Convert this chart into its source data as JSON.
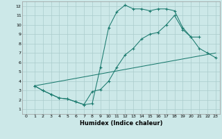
{
  "xlabel": "Humidex (Indice chaleur)",
  "bg_color": "#cce8e8",
  "grid_color": "#aacccc",
  "line_color": "#1a7a6e",
  "xlim": [
    -0.5,
    23.5
  ],
  "ylim": [
    0.5,
    12.5
  ],
  "xticks": [
    0,
    1,
    2,
    3,
    4,
    5,
    6,
    7,
    8,
    9,
    10,
    11,
    12,
    13,
    14,
    15,
    16,
    17,
    18,
    19,
    20,
    21,
    22,
    23
  ],
  "yticks": [
    1,
    2,
    3,
    4,
    5,
    6,
    7,
    8,
    9,
    10,
    11,
    12
  ],
  "xtick_labels": [
    "0",
    "1",
    "2",
    "3",
    "4",
    "5",
    "6",
    "7",
    "8",
    "9",
    "10",
    "11",
    "12",
    "13",
    "14",
    "15",
    "16",
    "17",
    "18",
    "19",
    "20",
    "21",
    "22",
    "23"
  ],
  "ytick_labels": [
    "1",
    "2",
    "3",
    "4",
    "5",
    "6",
    "7",
    "8",
    "9",
    "10",
    "11",
    "12"
  ],
  "line1_x": [
    1,
    2,
    3,
    4,
    5,
    6,
    7,
    8,
    9,
    10,
    11,
    12,
    13,
    14,
    15,
    16,
    17,
    18,
    19,
    20,
    21
  ],
  "line1_y": [
    3.5,
    3.0,
    2.6,
    2.2,
    2.1,
    1.8,
    1.5,
    1.6,
    5.5,
    9.7,
    11.4,
    12.1,
    11.7,
    11.7,
    11.5,
    11.7,
    11.7,
    11.5,
    9.7,
    8.7,
    8.7
  ],
  "line2_x": [
    1,
    2,
    3,
    4,
    5,
    6,
    7,
    8,
    9,
    10,
    11,
    12,
    13,
    14,
    15,
    16,
    17,
    18,
    19,
    20,
    21,
    22,
    23
  ],
  "line2_y": [
    3.5,
    3.0,
    2.6,
    2.2,
    2.1,
    1.8,
    1.5,
    2.9,
    3.1,
    4.0,
    5.5,
    6.8,
    7.5,
    8.5,
    9.0,
    9.2,
    10.0,
    11.0,
    9.5,
    8.7,
    7.5,
    7.0,
    6.5
  ],
  "line3_x": [
    1,
    23
  ],
  "line3_y": [
    3.5,
    7.0
  ]
}
